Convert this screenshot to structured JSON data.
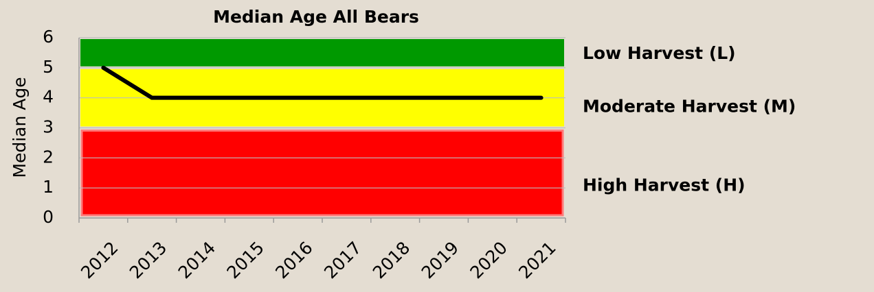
{
  "chart_data": {
    "type": "line",
    "title": "Median Age All Bears",
    "ylabel": "Median Age",
    "categories": [
      "2012",
      "2013",
      "2014",
      "2015",
      "2016",
      "2017",
      "2018",
      "2019",
      "2020",
      "2021"
    ],
    "values": [
      5,
      4,
      4,
      4,
      4,
      4,
      4,
      4,
      4,
      4
    ],
    "color": "#000000",
    "ylim": [
      0,
      6
    ],
    "yticks": [
      0,
      1,
      2,
      3,
      4,
      5,
      6
    ],
    "grid": true,
    "zones": [
      {
        "label": "Low Harvest (L)",
        "from": 5,
        "to": 6,
        "color": "#009900"
      },
      {
        "label": "Moderate Harvest (M)",
        "from": 3,
        "to": 5,
        "color": "#ffff00"
      },
      {
        "label": "High Harvest (H)",
        "from": 0,
        "to": 3,
        "color": "#ff0000"
      }
    ]
  }
}
